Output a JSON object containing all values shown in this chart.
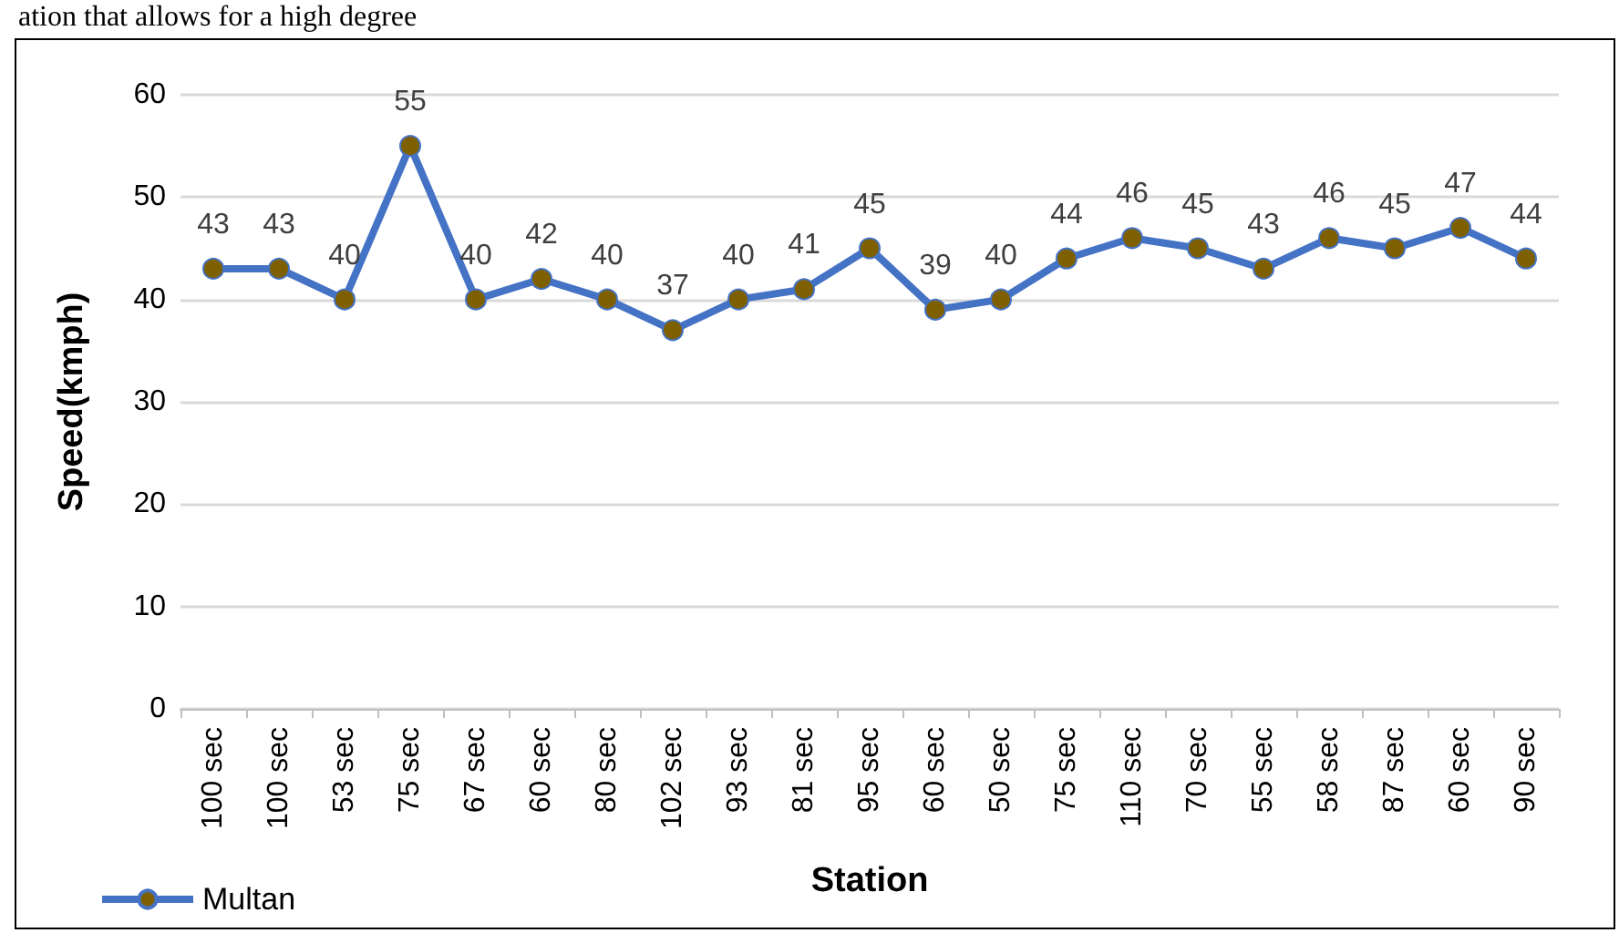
{
  "chart_data": {
    "type": "line",
    "xlabel": "Station",
    "ylabel": "Speed(kmph)",
    "annotations": [
      "ation that allows for a high degree"
    ],
    "categories": [
      "100 sec",
      "100 sec",
      "53 sec",
      "75 sec",
      "67 sec",
      "60 sec",
      "80 sec",
      "102 sec",
      "93 sec",
      "81 sec",
      "95 sec",
      "60 sec",
      "50 sec",
      "75 sec",
      "110 sec",
      "70 sec",
      "55 sec",
      "58 sec",
      "87 sec",
      "60 sec",
      "90 sec"
    ],
    "series": [
      {
        "name": "Multan",
        "color": "#4472c4",
        "values": [
          43,
          43,
          40,
          55,
          40,
          42,
          40,
          37,
          40,
          41,
          45,
          39,
          40,
          44,
          46,
          45,
          43,
          46,
          45,
          47,
          44
        ]
      }
    ],
    "ylim": [
      0,
      60
    ],
    "yticks": [
      0,
      10,
      20,
      30,
      40,
      50,
      60
    ],
    "grid": "y",
    "legend": "bottom left",
    "marker": "circle",
    "data_labels": true
  }
}
